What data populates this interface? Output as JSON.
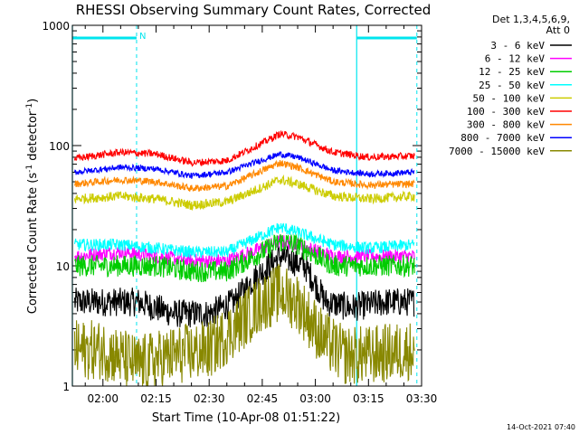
{
  "chart_data": {
    "type": "line",
    "title": "RHESSI Observing Summary Count Rates, Corrected",
    "xlabel": "Start Time (10-Apr-08 01:51:22)",
    "ylabel": "Corrected Count Rate (s-1 detector-1)",
    "ylabel_main": "Corrected Count Rate (s",
    "ylabel_sup1": "-1",
    "ylabel_mid": " detector",
    "ylabel_sup2": "-1",
    "ylabel_end": ")",
    "footer_timestamp": "14-Oct-2021 07:40",
    "y_scale": "log",
    "ylim": [
      1,
      1000
    ],
    "y_ticks": [
      {
        "value": 1,
        "label": "1"
      },
      {
        "value": 10,
        "label": "10"
      },
      {
        "value": 100,
        "label": "100"
      },
      {
        "value": 1000,
        "label": "1000"
      }
    ],
    "xlim": [
      "01:51:22",
      "03:30:00"
    ],
    "x_ticks": [
      {
        "time": "02:00",
        "label": "02:00"
      },
      {
        "time": "02:15",
        "label": "02:15"
      },
      {
        "time": "02:30",
        "label": "02:30"
      },
      {
        "time": "02:45",
        "label": "02:45"
      },
      {
        "time": "03:00",
        "label": "03:00"
      },
      {
        "time": "03:15",
        "label": "03:15"
      },
      {
        "time": "03:30",
        "label": "03:30"
      }
    ],
    "legend_header": [
      "Det 1,3,4,5,6,9,",
      "Att 0"
    ],
    "legend_position": "right",
    "night_intervals": [
      {
        "start": "01:51:22",
        "end": "02:09:30"
      },
      {
        "start": "03:11:40",
        "end": "03:28:40"
      }
    ],
    "saa_marker": {
      "time": "02:09:30",
      "label": "N"
    },
    "series": [
      {
        "name": "3 - 6 keV",
        "color": "#000000",
        "x": [
          "01:52",
          "02:00",
          "02:10",
          "02:20",
          "02:30",
          "02:37",
          "02:43",
          "02:50",
          "02:57",
          "03:03",
          "03:10",
          "03:20",
          "03:28"
        ],
        "values": [
          5,
          5,
          5,
          4,
          4,
          5,
          8,
          12,
          10,
          5,
          4.5,
          5,
          5
        ],
        "noise": 0.12
      },
      {
        "name": "6 - 12 keV",
        "color": "#ff00ff",
        "x": [
          "01:52",
          "02:05",
          "02:15",
          "02:25",
          "02:35",
          "02:45",
          "02:50",
          "02:55",
          "03:05",
          "03:15",
          "03:28"
        ],
        "values": [
          12,
          13,
          12,
          11,
          11,
          14,
          16,
          15,
          12,
          12,
          12
        ],
        "noise": 0.06
      },
      {
        "name": "12 - 25 keV",
        "color": "#00cc00",
        "x": [
          "01:52",
          "02:05",
          "02:15",
          "02:25",
          "02:35",
          "02:45",
          "02:50",
          "02:55",
          "03:05",
          "03:15",
          "03:28"
        ],
        "values": [
          10,
          10,
          10,
          9,
          9,
          13,
          16,
          15,
          10,
          10,
          10
        ],
        "noise": 0.09
      },
      {
        "name": "25 - 50 keV",
        "color": "#00ffff",
        "x": [
          "01:52",
          "02:05",
          "02:15",
          "02:25",
          "02:35",
          "02:45",
          "02:50",
          "02:55",
          "03:05",
          "03:15",
          "03:28"
        ],
        "values": [
          15,
          15,
          14,
          13,
          13,
          18,
          21,
          19,
          15,
          14,
          15
        ],
        "noise": 0.05
      },
      {
        "name": "50 - 100 keV",
        "color": "#cccc00",
        "x": [
          "01:52",
          "02:05",
          "02:15",
          "02:25",
          "02:35",
          "02:45",
          "02:50",
          "02:55",
          "03:05",
          "03:15",
          "03:28"
        ],
        "values": [
          36,
          38,
          36,
          32,
          34,
          45,
          52,
          48,
          38,
          36,
          38
        ],
        "noise": 0.04
      },
      {
        "name": "100 - 300 keV",
        "color": "#ff0000",
        "x": [
          "01:52",
          "02:05",
          "02:15",
          "02:25",
          "02:35",
          "02:45",
          "02:50",
          "02:55",
          "03:05",
          "03:15",
          "03:28"
        ],
        "values": [
          78,
          88,
          85,
          72,
          75,
          105,
          125,
          118,
          88,
          80,
          82
        ],
        "noise": 0.03
      },
      {
        "name": "300 - 800 keV",
        "color": "#ff8800",
        "x": [
          "01:52",
          "02:05",
          "02:15",
          "02:25",
          "02:35",
          "02:45",
          "02:50",
          "02:55",
          "03:05",
          "03:15",
          "03:28"
        ],
        "values": [
          48,
          52,
          50,
          44,
          46,
          62,
          72,
          66,
          50,
          47,
          48
        ],
        "noise": 0.03
      },
      {
        "name": "800 - 7000 keV",
        "color": "#0000ff",
        "x": [
          "01:52",
          "02:05",
          "02:15",
          "02:25",
          "02:35",
          "02:45",
          "02:50",
          "02:55",
          "03:05",
          "03:15",
          "03:28"
        ],
        "values": [
          60,
          66,
          64,
          56,
          60,
          76,
          85,
          80,
          62,
          58,
          60
        ],
        "noise": 0.025
      },
      {
        "name": "7000 - 15000 keV",
        "color": "#888800",
        "x": [
          "01:52",
          "02:00",
          "02:10",
          "02:20",
          "02:30",
          "02:37",
          "02:45",
          "02:50",
          "02:55",
          "03:02",
          "03:08",
          "03:15",
          "03:28"
        ],
        "values": [
          2,
          2,
          1.5,
          1.8,
          2,
          3,
          5,
          6,
          5,
          2.5,
          1.8,
          1.8,
          2
        ],
        "noise": 0.25
      }
    ]
  }
}
